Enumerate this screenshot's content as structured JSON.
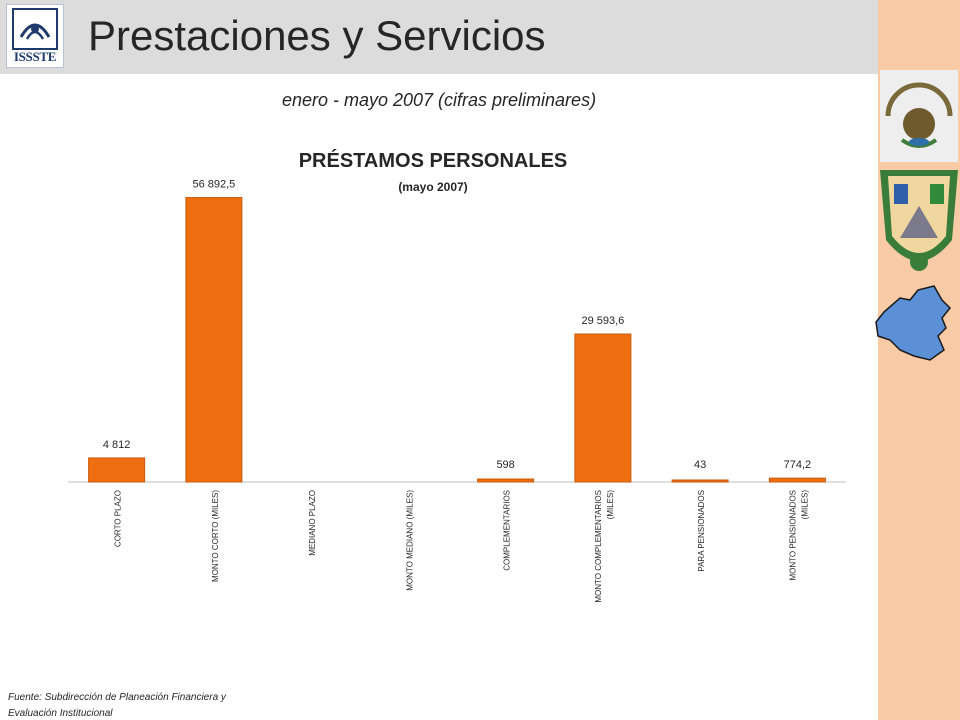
{
  "header": {
    "title": "Prestaciones y Servicios",
    "logo_text": "ISSSTE"
  },
  "subtitle": "enero - mayo 2007 (cifras preliminares)",
  "footer": {
    "source": "Fuente: Subdirección de Planeación Financiera y Evaluación Institucional"
  },
  "colors": {
    "header_bg": "#dcdcdc",
    "side_band": "#f8cba6",
    "bar": "#ef6f10",
    "map": "#5b8fd6"
  },
  "icons": [
    "issste-logo-icon",
    "national-emblem-icon",
    "state-shield-icon",
    "state-map-icon"
  ],
  "chart_data": {
    "type": "bar",
    "title": "PRÉSTAMOS PERSONALES",
    "subtitle": "(mayo 2007)",
    "xlabel": "",
    "ylabel": "",
    "grid": false,
    "legend": "none",
    "categories": [
      "CORTO PLAZO",
      "MONTO CORTO (MILES)",
      "MEDIANO PLAZO",
      "MONTO MEDIANO (MILES)",
      "COMPLEMENTARIOS",
      "MONTO COMPLEMENTARIOS (MILES)",
      "PARA PENSIONADOS",
      "MONTO PENSIONADOS (MILES)"
    ],
    "values": [
      4812,
      56892.5,
      0,
      0,
      598,
      29593.6,
      43,
      774.2
    ],
    "value_labels": [
      "4 812",
      "56 892,5",
      "",
      "",
      "598",
      "29 593,6",
      "43",
      "774,2"
    ],
    "ylim": [
      0,
      58000
    ]
  }
}
